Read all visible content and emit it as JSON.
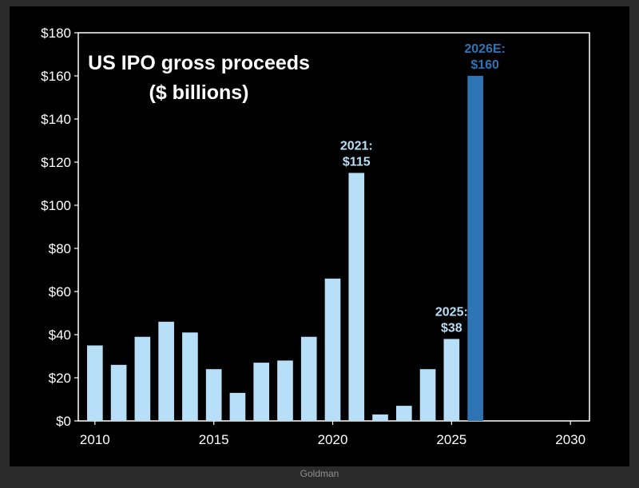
{
  "colors": {
    "background": "#000000",
    "page": "#2b2b2b",
    "bar": "#b7dff8",
    "bar_estimate": "#2e74b5",
    "annotation": "#b7dff8",
    "annotation_estimate": "#2e74b5",
    "axis": "#ffffff"
  },
  "source": "Goldman",
  "chart_data": {
    "type": "bar",
    "title": [
      "US IPO gross proceeds",
      "($ billions)"
    ],
    "xlabel": "",
    "ylabel": "",
    "xlim": [
      2009.3,
      2030.8
    ],
    "ylim": [
      0,
      180
    ],
    "x_ticks": [
      2010,
      2015,
      2020,
      2025,
      2030
    ],
    "x_tick_labels": [
      "2010",
      "2015",
      "2020",
      "2025",
      "2030"
    ],
    "y_ticks": [
      0,
      20,
      40,
      60,
      80,
      100,
      120,
      140,
      160,
      180
    ],
    "y_tick_labels": [
      "$0",
      "$20",
      "$40",
      "$60",
      "$80",
      "$100",
      "$120",
      "$140",
      "$160",
      "$180"
    ],
    "grid": false,
    "bars": [
      {
        "year": 2010,
        "value": 35,
        "estimate": false
      },
      {
        "year": 2011,
        "value": 26,
        "estimate": false
      },
      {
        "year": 2012,
        "value": 39,
        "estimate": false
      },
      {
        "year": 2013,
        "value": 46,
        "estimate": false
      },
      {
        "year": 2014,
        "value": 41,
        "estimate": false
      },
      {
        "year": 2015,
        "value": 24,
        "estimate": false
      },
      {
        "year": 2016,
        "value": 13,
        "estimate": false
      },
      {
        "year": 2017,
        "value": 27,
        "estimate": false
      },
      {
        "year": 2018,
        "value": 28,
        "estimate": false
      },
      {
        "year": 2019,
        "value": 39,
        "estimate": false
      },
      {
        "year": 2020,
        "value": 66,
        "estimate": false
      },
      {
        "year": 2021,
        "value": 115,
        "estimate": false
      },
      {
        "year": 2022,
        "value": 3,
        "estimate": false
      },
      {
        "year": 2023,
        "value": 7,
        "estimate": false
      },
      {
        "year": 2024,
        "value": 24,
        "estimate": false
      },
      {
        "year": 2025,
        "value": 38,
        "estimate": false
      },
      {
        "year": 2026,
        "value": 160,
        "estimate": true
      }
    ],
    "annotations": [
      {
        "year": 2021,
        "value": 115,
        "lines": [
          "2021:",
          "$115"
        ],
        "estimate": false
      },
      {
        "year": 2025,
        "value": 38,
        "lines": [
          "2025:",
          "$38"
        ],
        "estimate": false
      },
      {
        "year": 2026,
        "value": 160,
        "lines": [
          "2026E:",
          "$160"
        ],
        "estimate": true
      }
    ]
  }
}
